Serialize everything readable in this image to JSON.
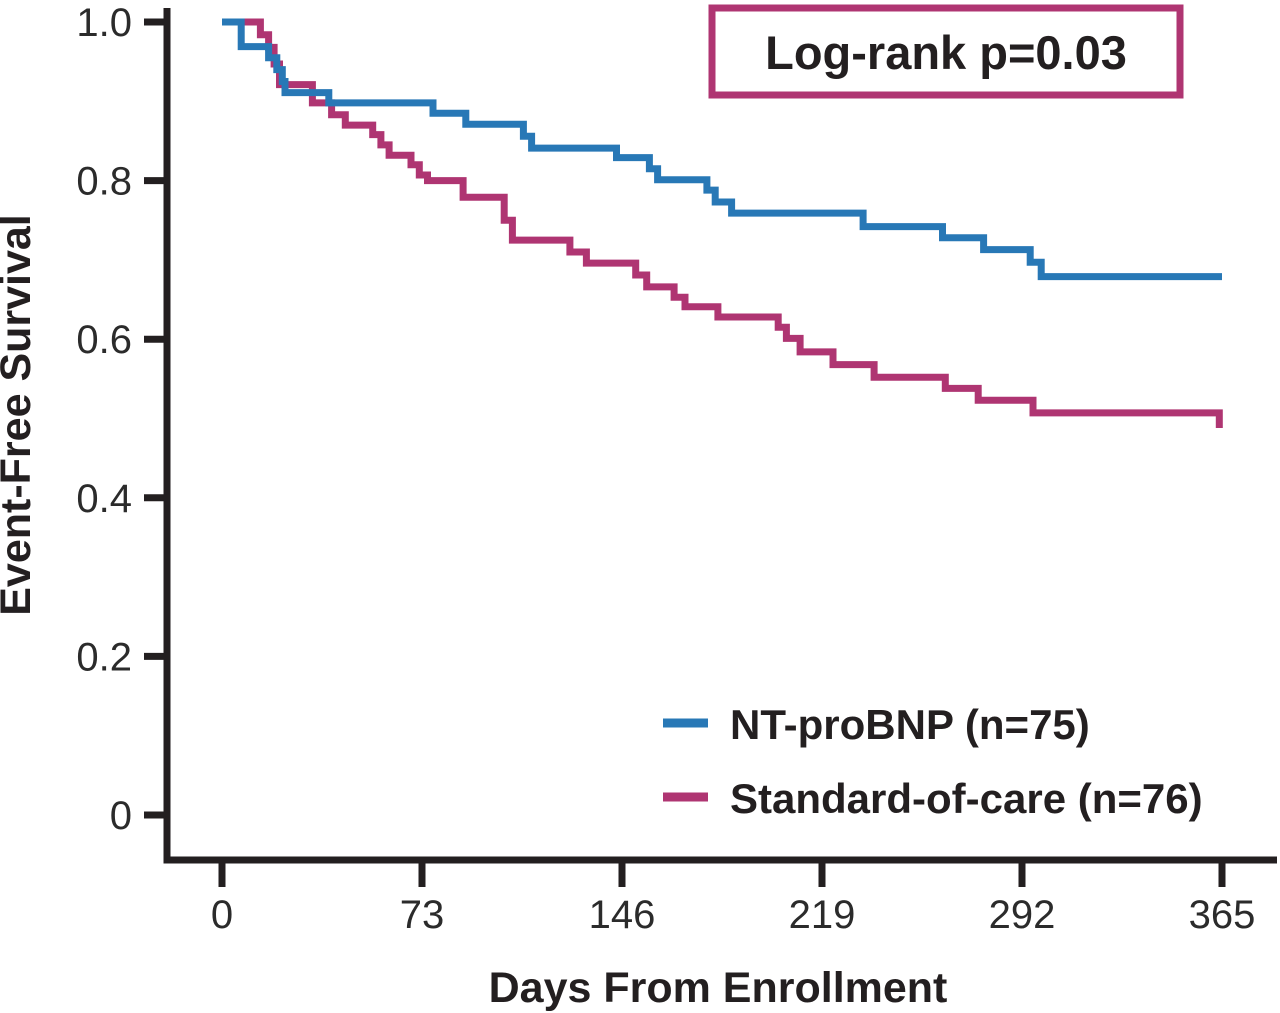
{
  "colors": {
    "blue": "#2878B6",
    "magenta": "#AF3572",
    "axis": "#231F20",
    "tick_text": "#2B2B2B",
    "background": "#FFFFFF"
  },
  "annotation_box": {
    "label": "Log-rank p=0.03",
    "border_color": "#AF3572"
  },
  "legend": {
    "items": [
      {
        "label": "NT-proBNP (n=75)",
        "color": "#2878B6"
      },
      {
        "label": "Standard-of-care (n=76)",
        "color": "#AF3572"
      }
    ]
  },
  "chart_data": {
    "type": "line",
    "subtype": "kaplan-meier-step",
    "title": "",
    "xlabel": "Days From Enrollment",
    "ylabel": "Event-Free Survival",
    "xlim": [
      0,
      365
    ],
    "ylim": [
      0,
      1.0
    ],
    "grid": false,
    "legend_position": "inside lower-right",
    "annotation": "Log-rank p=0.03",
    "x_ticks": [
      0,
      73,
      146,
      219,
      292,
      365
    ],
    "x_tick_labels": [
      "0",
      "73",
      "146",
      "219",
      "292",
      "365"
    ],
    "y_ticks": [
      1.0,
      0.8,
      0.6,
      0.4,
      0.2,
      0
    ],
    "y_tick_labels": [
      "1.0",
      "0.8",
      "0.6",
      "0.4",
      "0.2",
      "0"
    ],
    "series": [
      {
        "name": "NT-proBNP (n=75)",
        "n": 75,
        "color": "#2878B6",
        "points_note": "each point [day, survival]: curve steps down to this survival at this day; final survival at day 365 = 0.68",
        "points": [
          [
            0,
            1.0
          ],
          [
            7,
            0.969
          ],
          [
            17,
            0.955
          ],
          [
            20,
            0.94
          ],
          [
            22,
            0.925
          ],
          [
            23,
            0.911
          ],
          [
            39,
            0.898
          ],
          [
            77,
            0.885
          ],
          [
            89,
            0.871
          ],
          [
            110,
            0.856
          ],
          [
            113,
            0.841
          ],
          [
            144,
            0.829
          ],
          [
            156,
            0.815
          ],
          [
            159,
            0.801
          ],
          [
            177,
            0.788
          ],
          [
            180,
            0.773
          ],
          [
            186,
            0.759
          ],
          [
            234,
            0.742
          ],
          [
            263,
            0.728
          ],
          [
            278,
            0.713
          ],
          [
            295,
            0.697
          ],
          [
            299,
            0.679
          ],
          [
            365,
            0.679
          ]
        ]
      },
      {
        "name": "Standard-of-care (n=76)",
        "n": 76,
        "color": "#AF3572",
        "points_note": "each point [day, survival]: curve steps down to this survival at this day; final survival at day 365 = 0.49",
        "points": [
          [
            0,
            1.0
          ],
          [
            14,
            0.984
          ],
          [
            17,
            0.968
          ],
          [
            19,
            0.947
          ],
          [
            21,
            0.921
          ],
          [
            33,
            0.898
          ],
          [
            40,
            0.883
          ],
          [
            45,
            0.87
          ],
          [
            55,
            0.858
          ],
          [
            58,
            0.845
          ],
          [
            61,
            0.832
          ],
          [
            69,
            0.82
          ],
          [
            72,
            0.807
          ],
          [
            75,
            0.8
          ],
          [
            88,
            0.779
          ],
          [
            103,
            0.75
          ],
          [
            106,
            0.725
          ],
          [
            127,
            0.71
          ],
          [
            133,
            0.696
          ],
          [
            151,
            0.681
          ],
          [
            155,
            0.666
          ],
          [
            165,
            0.653
          ],
          [
            169,
            0.641
          ],
          [
            181,
            0.628
          ],
          [
            203,
            0.615
          ],
          [
            206,
            0.601
          ],
          [
            211,
            0.584
          ],
          [
            223,
            0.568
          ],
          [
            238,
            0.552
          ],
          [
            264,
            0.538
          ],
          [
            276,
            0.523
          ],
          [
            296,
            0.507
          ],
          [
            364,
            0.488
          ]
        ]
      }
    ]
  }
}
